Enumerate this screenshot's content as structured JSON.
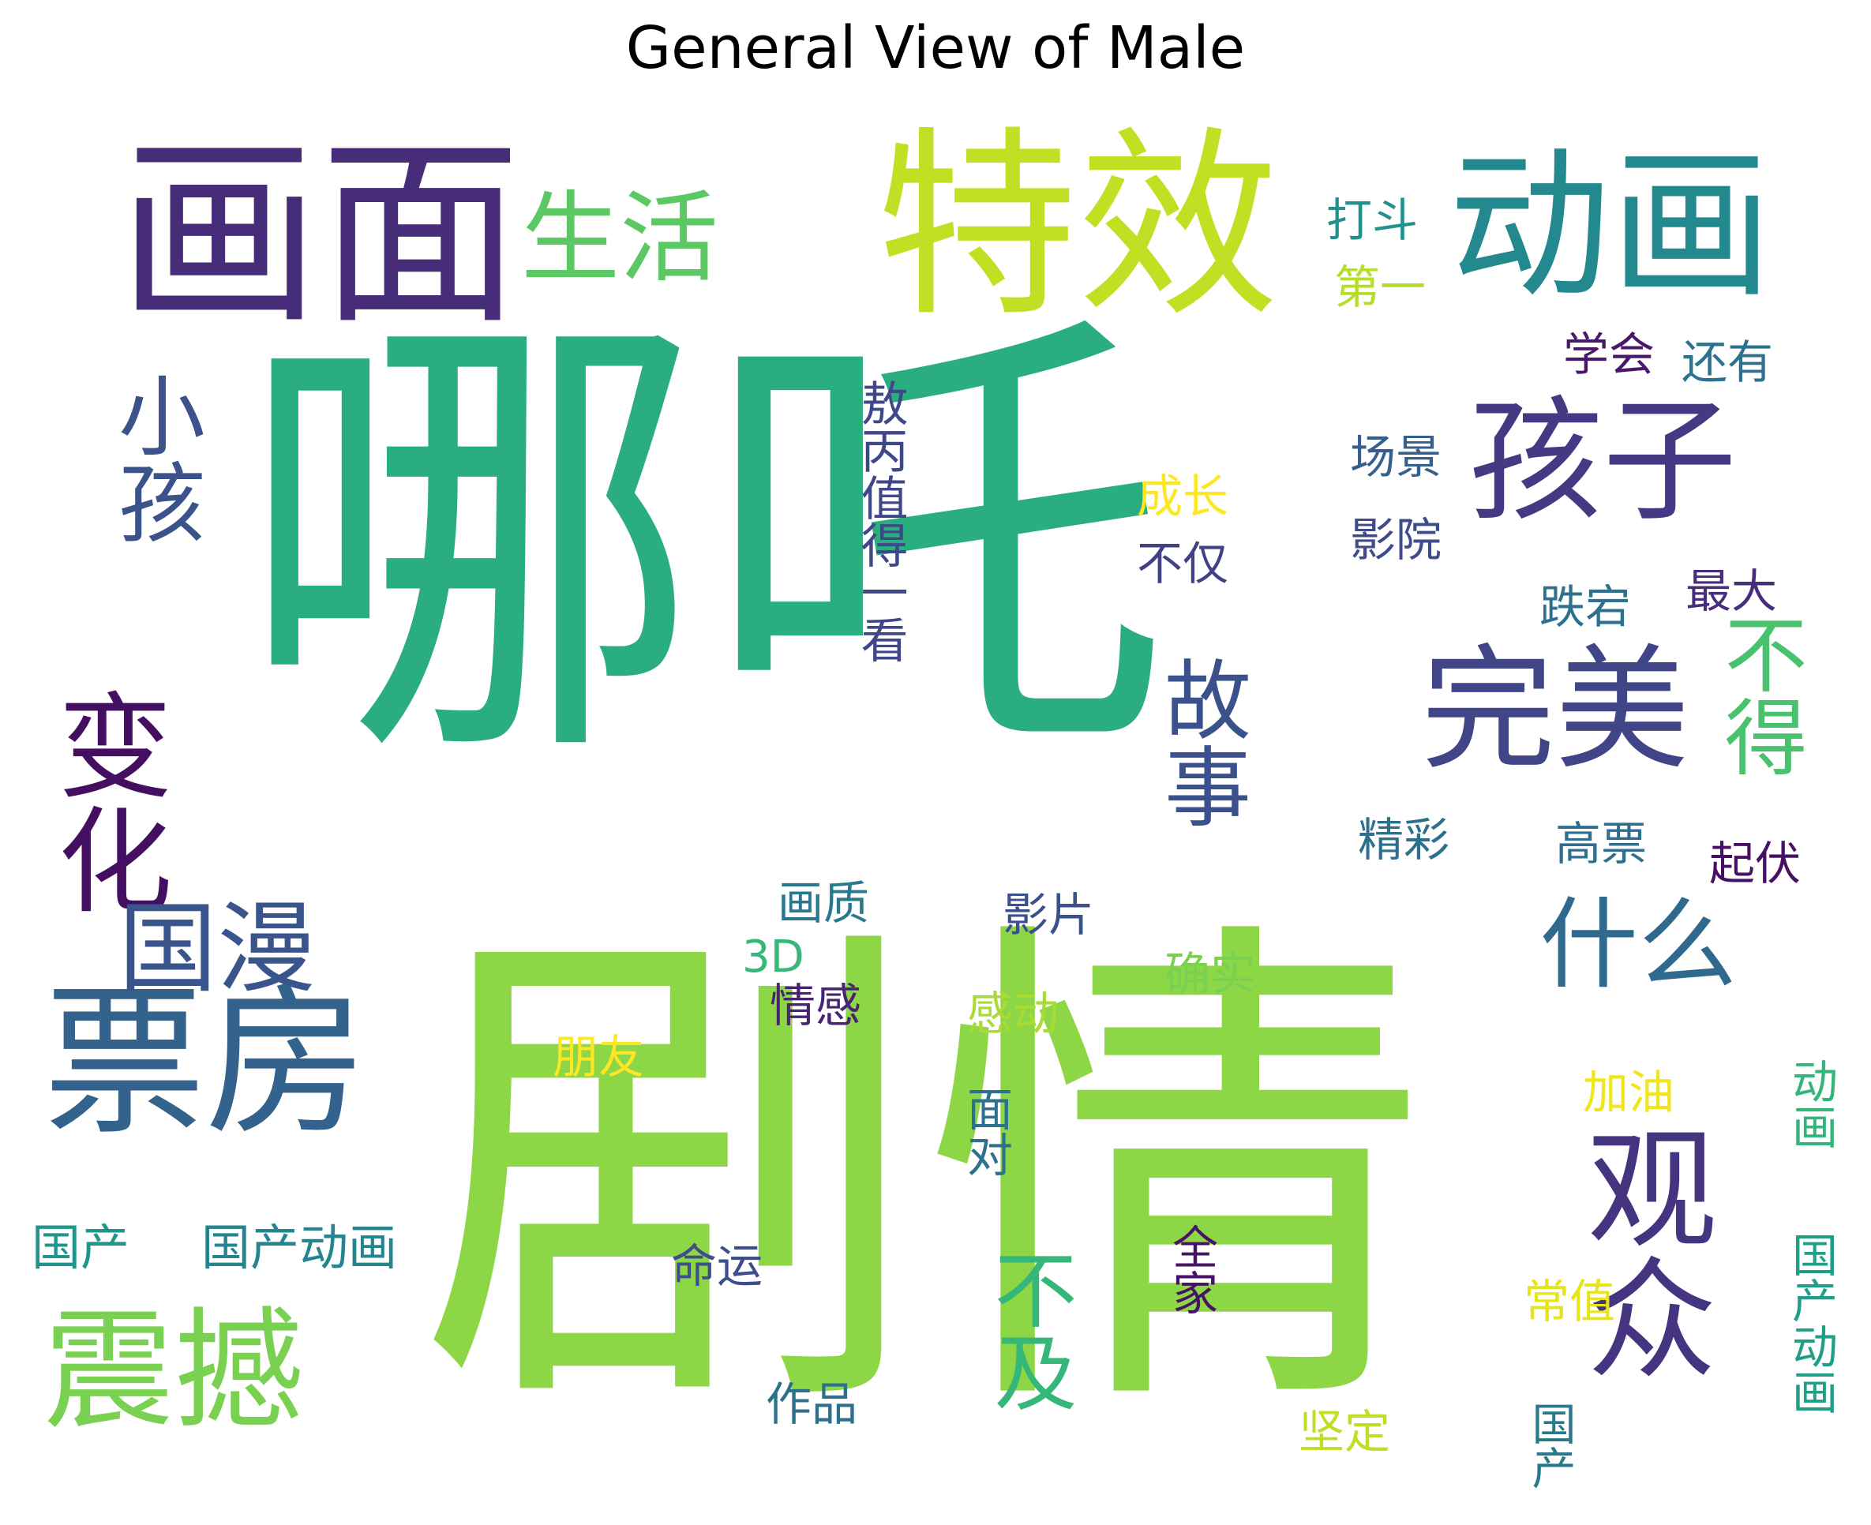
{
  "title": "General View of Male",
  "colors": {
    "dark_purple": "#482878",
    "purple": "#46337e",
    "indigo": "#3e4a89",
    "blue": "#31688e",
    "teal": "#26828e",
    "teal_green": "#1f9e89",
    "green": "#29af7f",
    "light_green": "#6ece58",
    "lime": "#8fd744",
    "yellow_green": "#c8e020",
    "yellow": "#fde725"
  },
  "words": [
    {
      "id": "nezha",
      "text": "哪吒",
      "color": "#2aae80",
      "vertical": false
    },
    {
      "id": "juqing",
      "text": "剧情",
      "color": "#8dd645",
      "vertical": false
    },
    {
      "id": "texiao",
      "text": "特效",
      "color": "#c2df23",
      "vertical": false
    },
    {
      "id": "huamian",
      "text": "画面",
      "color": "#472c7a",
      "vertical": false
    },
    {
      "id": "donghua",
      "text": "动画",
      "color": "#23898e",
      "vertical": false
    },
    {
      "id": "piaofang",
      "text": "票房",
      "color": "#33628d",
      "vertical": false
    },
    {
      "id": "haizi",
      "text": "孩子",
      "color": "#443a83",
      "vertical": false
    },
    {
      "id": "wanmei",
      "text": "完美",
      "color": "#404588",
      "vertical": false
    },
    {
      "id": "guanzhong",
      "text": "观众",
      "color": "#453581",
      "vertical": true
    },
    {
      "id": "zhenhan",
      "text": "震撼",
      "color": "#7ad151",
      "vertical": false
    },
    {
      "id": "shenghuo",
      "text": "生活",
      "color": "#5cc863",
      "vertical": false
    },
    {
      "id": "bianhua",
      "text": "变化",
      "color": "#440f60",
      "vertical": true
    },
    {
      "id": "xiaohai",
      "text": "小孩",
      "color": "#3b528b",
      "vertical": true
    },
    {
      "id": "guoman",
      "text": "国漫",
      "color": "#3a548c",
      "vertical": false
    },
    {
      "id": "gushi",
      "text": "故事",
      "color": "#3b518b",
      "vertical": true
    },
    {
      "id": "shenme",
      "text": "什么",
      "color": "#30698e",
      "vertical": false
    },
    {
      "id": "bude",
      "text": "不得",
      "color": "#4ac16d",
      "vertical": true
    },
    {
      "id": "buji",
      "text": "不及",
      "color": "#35b779",
      "vertical": true
    },
    {
      "id": "dadou",
      "text": "打斗",
      "color": "#21918c",
      "vertical": false
    },
    {
      "id": "diyi",
      "text": "第一",
      "color": "#b5de2b",
      "vertical": false
    },
    {
      "id": "xuehui",
      "text": "学会",
      "color": "#48186a",
      "vertical": false
    },
    {
      "id": "haiyou",
      "text": "还有",
      "color": "#2c728e",
      "vertical": false
    },
    {
      "id": "aobing",
      "text": "敖丙值得一看",
      "color": "#3f4788",
      "vertical": true
    },
    {
      "id": "changjing",
      "text": "场景",
      "color": "#355f8d",
      "vertical": false
    },
    {
      "id": "chengzhang",
      "text": "成长",
      "color": "#fde725",
      "vertical": false
    },
    {
      "id": "yingyuan",
      "text": "影院",
      "color": "#3e4c8a",
      "vertical": false
    },
    {
      "id": "bujin",
      "text": "不仅",
      "color": "#424186",
      "vertical": false
    },
    {
      "id": "zuida",
      "text": "最大",
      "color": "#472d7b",
      "vertical": false
    },
    {
      "id": "diedang",
      "text": "跌宕",
      "color": "#2d718e",
      "vertical": false
    },
    {
      "id": "jingcai",
      "text": "精彩",
      "color": "#2d708e",
      "vertical": false
    },
    {
      "id": "gaopiao",
      "text": "高票",
      "color": "#2e6f8e",
      "vertical": false
    },
    {
      "id": "qifu",
      "text": "起伏",
      "color": "#471063",
      "vertical": false
    },
    {
      "id": "huazhi",
      "text": "画质",
      "color": "#2a788e",
      "vertical": false
    },
    {
      "id": "yingpian",
      "text": "影片",
      "color": "#3b518b",
      "vertical": false
    },
    {
      "id": "sand",
      "text": "3D",
      "color": "#37b878",
      "vertical": false
    },
    {
      "id": "qinggan",
      "text": "情感",
      "color": "#482374",
      "vertical": false
    },
    {
      "id": "queshi",
      "text": "确实",
      "color": "#7ad151",
      "vertical": false
    },
    {
      "id": "gandong",
      "text": "感动",
      "color": "#a8db34",
      "vertical": false
    },
    {
      "id": "pengyou",
      "text": "朋友",
      "color": "#fde725",
      "vertical": false
    },
    {
      "id": "jiayou",
      "text": "加油",
      "color": "#f1e51d",
      "vertical": false
    },
    {
      "id": "mianDui",
      "text": "面对",
      "color": "#2c728e",
      "vertical": true
    },
    {
      "id": "donghua_small",
      "text": "动画",
      "color": "#32b67a",
      "vertical": true
    },
    {
      "id": "guochan_left",
      "text": "国产",
      "color": "#1f958b",
      "vertical": false
    },
    {
      "id": "guochandonghua_left",
      "text": "国产动画",
      "color": "#25858e",
      "vertical": false
    },
    {
      "id": "quanjia",
      "text": "全家",
      "color": "#471365",
      "vertical": true
    },
    {
      "id": "mingyun",
      "text": "命运",
      "color": "#3d4e8a",
      "vertical": false
    },
    {
      "id": "changzhi",
      "text": "常值",
      "color": "#e7e419",
      "vertical": false
    },
    {
      "id": "guochandonghua_right",
      "text": "国产动画",
      "color": "#1f9f88",
      "vertical": true
    },
    {
      "id": "zuopin",
      "text": "作品",
      "color": "#2d708e",
      "vertical": false
    },
    {
      "id": "jianding",
      "text": "坚定",
      "color": "#bddf26",
      "vertical": false
    },
    {
      "id": "guochan_right",
      "text": "国产",
      "color": "#2a788e",
      "vertical": true
    }
  ]
}
